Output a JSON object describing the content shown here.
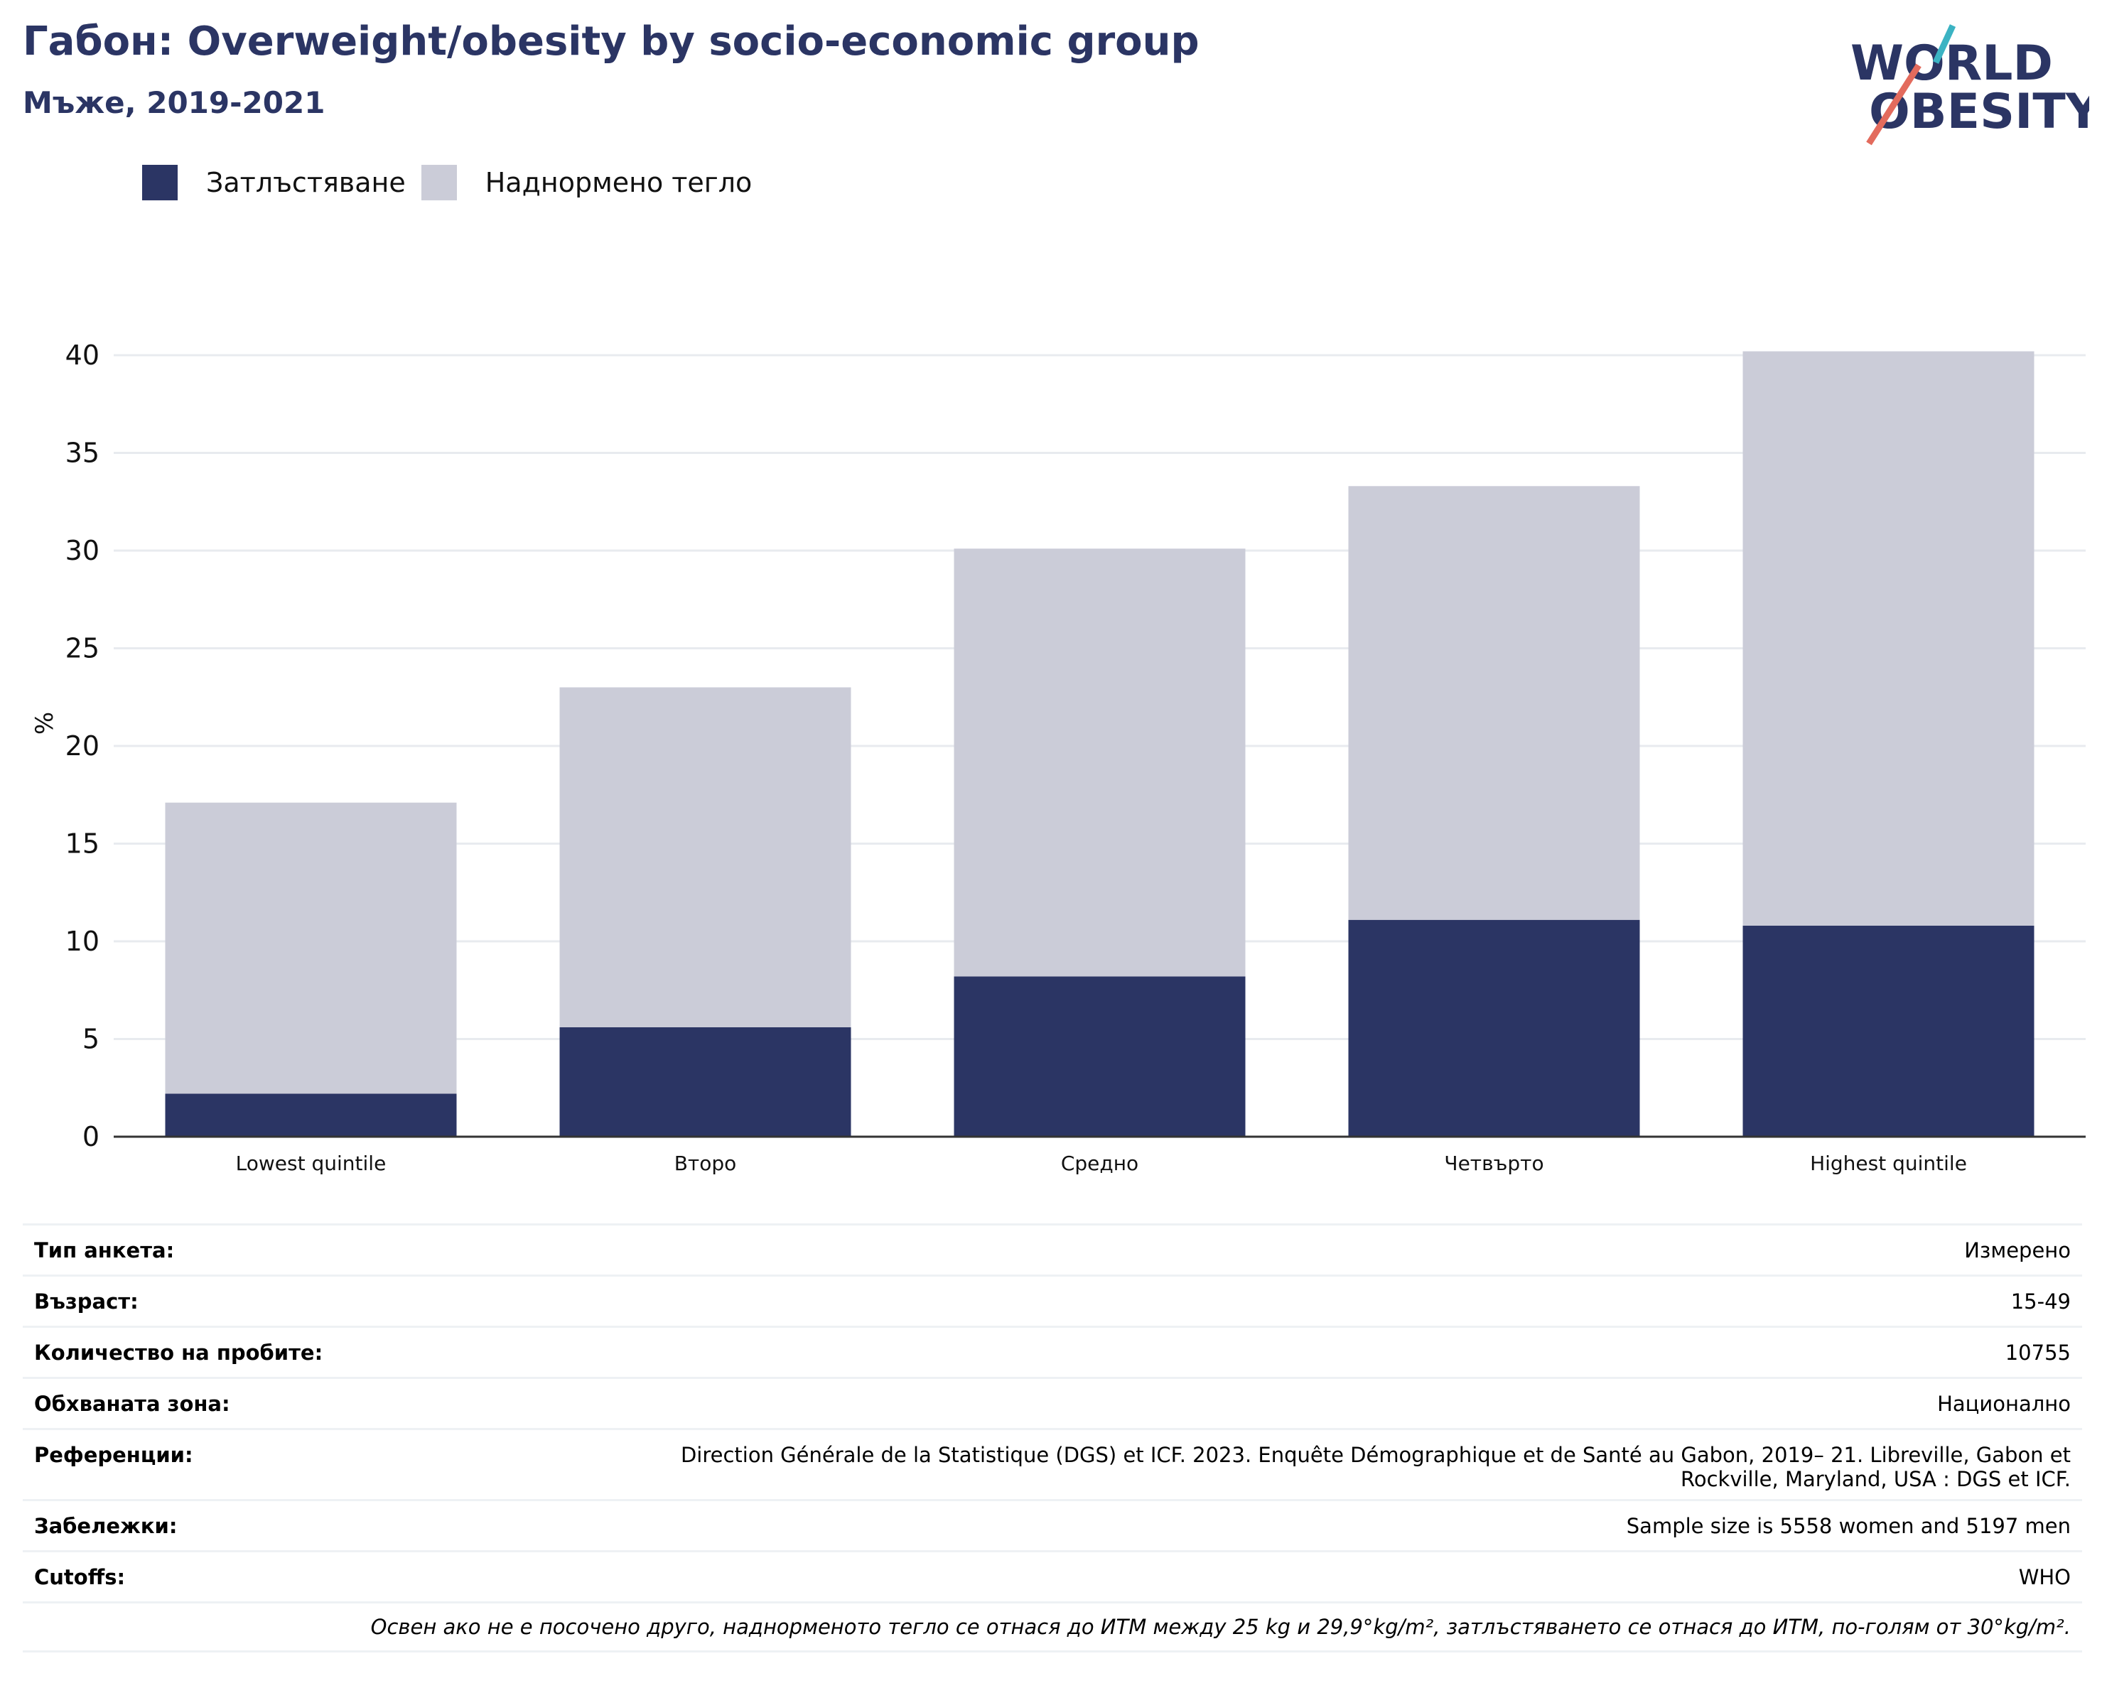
{
  "header": {
    "title": "Габон: Overweight/obesity by socio-economic group",
    "subtitle": "Мъже, 2019-2021"
  },
  "logo": {
    "line1": "WORLD",
    "line2": "OBESITY",
    "icon": "world-obesity-logo"
  },
  "colors": {
    "obesity": "#2b3564",
    "overweight": "#cbccd8",
    "grid": "#e8ebef",
    "axis": "#333333"
  },
  "chart_data": {
    "type": "bar",
    "stacked": true,
    "categories": [
      "Lowest quintile",
      "Второ",
      "Средно",
      "Четвърто",
      "Highest quintile"
    ],
    "series": [
      {
        "name": "Затлъстяване",
        "values": [
          2.2,
          5.6,
          8.2,
          11.1,
          10.8
        ]
      },
      {
        "name": "Наднормено тегло",
        "values": [
          14.9,
          17.4,
          21.9,
          22.2,
          29.4
        ]
      }
    ],
    "totals": [
      17.1,
      23.0,
      30.1,
      33.3,
      40.2
    ],
    "ylabel": "%",
    "yticks": [
      0,
      5,
      10,
      15,
      20,
      25,
      30,
      35,
      40
    ],
    "ylim": [
      0,
      40
    ],
    "grid": true,
    "legend_position": "top-left"
  },
  "info": {
    "rows": [
      {
        "label": "Тип анкета:",
        "value": "Измерено"
      },
      {
        "label": "Възраст:",
        "value": "15-49"
      },
      {
        "label": "Количество на пробите:",
        "value": "10755"
      },
      {
        "label": "Обхваната зона:",
        "value": "Национално"
      },
      {
        "label": "Референции:",
        "value": "Direction Générale de la Statistique (DGS) et ICF. 2023. Enquête Démographique et de Santé au Gabon, 2019– 21. Libreville, Gabon et Rockville, Maryland, USA : DGS et ICF."
      },
      {
        "label": "Забележки:",
        "value": "Sample size is 5558 women and 5197 men"
      },
      {
        "label": "Cutoffs:",
        "value": "WHO"
      }
    ],
    "footnote": "Освен ако не е посочено друго, наднорменото тегло се отнася до ИТМ между 25 kg и 29,9°kg/m², затлъстяването се отнася до ИТМ, по-голям от 30°kg/m²."
  }
}
